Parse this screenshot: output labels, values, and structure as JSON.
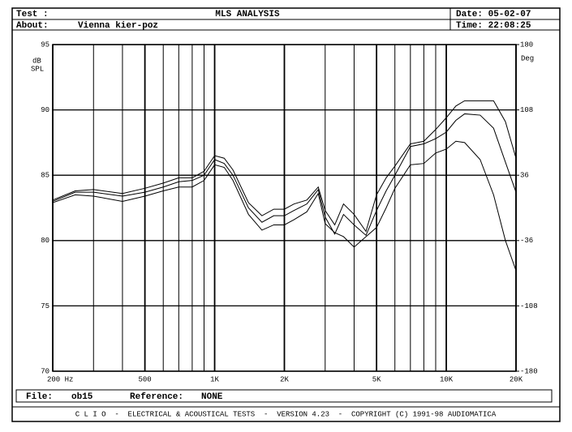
{
  "header": {
    "test": "Test :",
    "about": "About:",
    "about_value": "Vienna kier-poz",
    "date": "Date: 05-02-07",
    "time": "Time: 22:08:25"
  },
  "file_bar": {
    "file_label": "File:",
    "file": "ob15",
    "reference_label": "Reference:",
    "reference": "NONE"
  },
  "footer": "C L I O  -  ELECTRICAL & ACOUSTICAL TESTS  -  VERSION 4.23  -  COPYRIGHT (C) 1991-98 AUDIOMATICA",
  "chart_data": {
    "type": "line",
    "title": "MLS ANALYSIS",
    "ylabel": [
      "dB",
      "SPL"
    ],
    "y2label": "Deg",
    "log_x": true,
    "grid": true,
    "x": [
      200,
      250,
      300,
      400,
      500,
      600,
      700,
      800,
      900,
      1000,
      1100,
      1200,
      1400,
      1600,
      1800,
      2000,
      2200,
      2500,
      2800,
      3000,
      3300,
      3600,
      4000,
      4500,
      5000,
      5500,
      6000,
      7000,
      8000,
      9000,
      10000,
      11000,
      12000,
      14000,
      16000,
      18000,
      20000
    ],
    "series": [
      {
        "color": "#000000",
        "values": [
          83.1,
          83.8,
          83.9,
          83.6,
          84.0,
          84.4,
          84.8,
          84.8,
          85.3,
          86.5,
          86.3,
          85.4,
          82.9,
          81.9,
          82.4,
          82.4,
          82.8,
          83.1,
          84.1,
          82.3,
          81.2,
          82.8,
          82.0,
          80.7,
          83.5,
          84.8,
          85.7,
          87.4,
          87.6,
          88.5,
          89.4,
          90.3,
          90.7,
          90.7,
          90.7,
          89.1,
          86.3
        ]
      },
      {
        "color": "#000000",
        "values": [
          83.0,
          83.7,
          83.7,
          83.4,
          83.7,
          84.1,
          84.5,
          84.6,
          85.0,
          86.2,
          85.9,
          85.0,
          82.5,
          81.4,
          81.9,
          81.9,
          82.3,
          82.8,
          83.9,
          81.8,
          80.5,
          82.0,
          81.2,
          80.4,
          82.3,
          83.8,
          85.0,
          87.2,
          87.4,
          87.8,
          88.3,
          89.2,
          89.7,
          89.6,
          88.6,
          86.0,
          83.7
        ]
      },
      {
        "color": "#000000",
        "values": [
          82.9,
          83.5,
          83.4,
          83.0,
          83.4,
          83.8,
          84.1,
          84.1,
          84.6,
          85.8,
          85.6,
          84.6,
          82.0,
          80.8,
          81.2,
          81.2,
          81.6,
          82.2,
          83.6,
          81.3,
          80.6,
          80.3,
          79.5,
          80.3,
          81.0,
          82.5,
          84.0,
          85.8,
          85.9,
          86.7,
          87.0,
          87.6,
          87.5,
          86.2,
          83.5,
          80.0,
          77.7
        ]
      }
    ],
    "xlim": [
      200,
      20000
    ],
    "xticks": [
      {
        "value": 200,
        "label": "200 Hz"
      },
      500,
      {
        "value": 1000,
        "label": "1K"
      },
      {
        "value": 2000,
        "label": "2K"
      },
      {
        "value": 5000,
        "label": "5K"
      },
      {
        "value": 10000,
        "label": "10K"
      },
      {
        "value": 20000,
        "label": "20K"
      }
    ],
    "xminor": [
      300,
      400,
      600,
      700,
      800,
      900,
      3000,
      4000,
      6000,
      7000,
      8000,
      9000
    ],
    "ylim": [
      70,
      95
    ],
    "yticks": [
      70,
      75,
      80,
      85,
      90,
      95
    ],
    "y2lim": [
      -180,
      180
    ],
    "y2ticks": [
      -180,
      -108,
      -36,
      36,
      108,
      180
    ]
  }
}
